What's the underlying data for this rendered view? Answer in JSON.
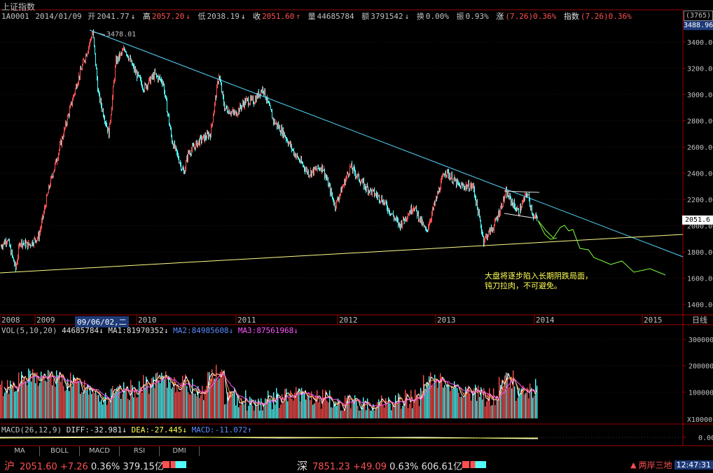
{
  "header": {
    "title": "上证指数",
    "code": "1A0001",
    "date": "2014/01/09",
    "open_label": "开",
    "open": "2041.77",
    "high_label": "高",
    "high": "2057.20",
    "low_label": "低",
    "low": "2038.19",
    "close_label": "收",
    "close": "2051.60",
    "volume_label": "量",
    "volume": "44685784",
    "amount_label": "额",
    "amount": "3791542",
    "turnover_label": "换",
    "turnover": "0.00%",
    "amplitude_label": "振",
    "amplitude": "0.93%",
    "change_label": "涨",
    "change": "(7.26)0.36%",
    "index_label": "指数",
    "index_change": "(7.26)0.36%",
    "arrow_down": "↓",
    "arrow_up": "↑"
  },
  "right_panel": {
    "count_box": "(3765)",
    "top_price": "3488.96",
    "current_price": "2051.6"
  },
  "price_axis": [
    "3400.00",
    "3200.00",
    "3000.00",
    "2800.00",
    "2600.00",
    "2400.00",
    "2200.00",
    "2000.00",
    "1800.00",
    "1600.00",
    "1400.00"
  ],
  "peak_label": "3478.01",
  "annotation": {
    "line1": "大盘将逐步陷入长期阴跌局面，",
    "line2": "钝刀拉肉，不可避免。"
  },
  "x_axis": {
    "years": [
      "2008",
      "2009",
      "2010",
      "2011",
      "2012",
      "2013",
      "2014",
      "2015"
    ],
    "highlight_date": "09/06/02,二",
    "unit": "日线"
  },
  "volume_panel": {
    "label": "VOL(5,10,20)",
    "vol": "44685784",
    "ma1_label": "MA1:",
    "ma1": "81970352",
    "ma2_label": "MA2:",
    "ma2": "84985608",
    "ma3_label": "MA3:",
    "ma3": "87561968",
    "axis": [
      "300000",
      "200000",
      "100000"
    ],
    "multiplier": "X10000"
  },
  "macd_panel": {
    "label": "MACD(26,12,9)",
    "diff_label": "DIFF:",
    "diff": "-32.981",
    "dea_label": "DEA:",
    "dea": "-27.445",
    "macd_label": "MACD:",
    "macd": "-11.072",
    "axis": "0.00"
  },
  "tabs": [
    "MA",
    "BOLL",
    "MACD",
    "RSI",
    "DMI"
  ],
  "status_bar": {
    "sh_label": "沪",
    "sh_price": "2051.60",
    "sh_change": "+7.26",
    "sh_pct": "0.36%",
    "sh_amount": "379.15亿",
    "sz_label": "深",
    "sz_price": "7851.23",
    "sz_change": "+49.09",
    "sz_pct": "0.63%",
    "sz_amount": "606.61亿",
    "news": "两岸三地",
    "clock": "12:47:31"
  },
  "colors": {
    "up": "#ff5050",
    "down": "#54fcfc",
    "trend_line": "#54d8fc",
    "support_line": "#ffff88",
    "projection": "#80ff40"
  }
}
